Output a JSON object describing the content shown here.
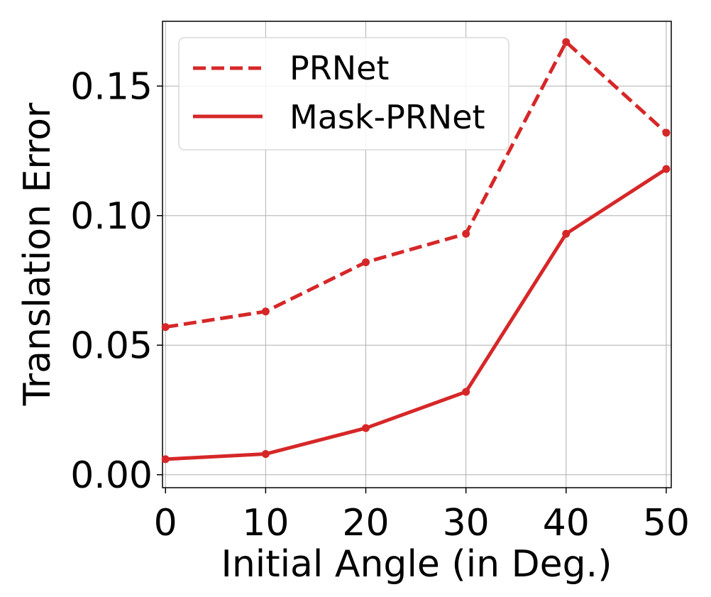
{
  "chart_data": {
    "type": "line",
    "xlabel": "Initial Angle (in Deg.)",
    "ylabel": "Translation Error",
    "x": [
      0,
      10,
      20,
      30,
      40,
      50
    ],
    "xticks": [
      "0",
      "10",
      "20",
      "30",
      "40",
      "50"
    ],
    "yticks": [
      "0.00",
      "0.05",
      "0.10",
      "0.15"
    ],
    "xlim": [
      -0.3,
      50.5
    ],
    "ylim": [
      -0.005,
      0.175
    ],
    "grid": true,
    "legend_position": "upper-left",
    "series": [
      {
        "name": "PRNet",
        "style": "dashed",
        "color": "#d62728",
        "values": [
          0.057,
          0.063,
          0.082,
          0.093,
          0.167,
          0.132
        ]
      },
      {
        "name": "Mask-PRNet",
        "style": "solid",
        "color": "#d62728",
        "values": [
          0.006,
          0.008,
          0.018,
          0.032,
          0.093,
          0.118
        ]
      }
    ]
  }
}
